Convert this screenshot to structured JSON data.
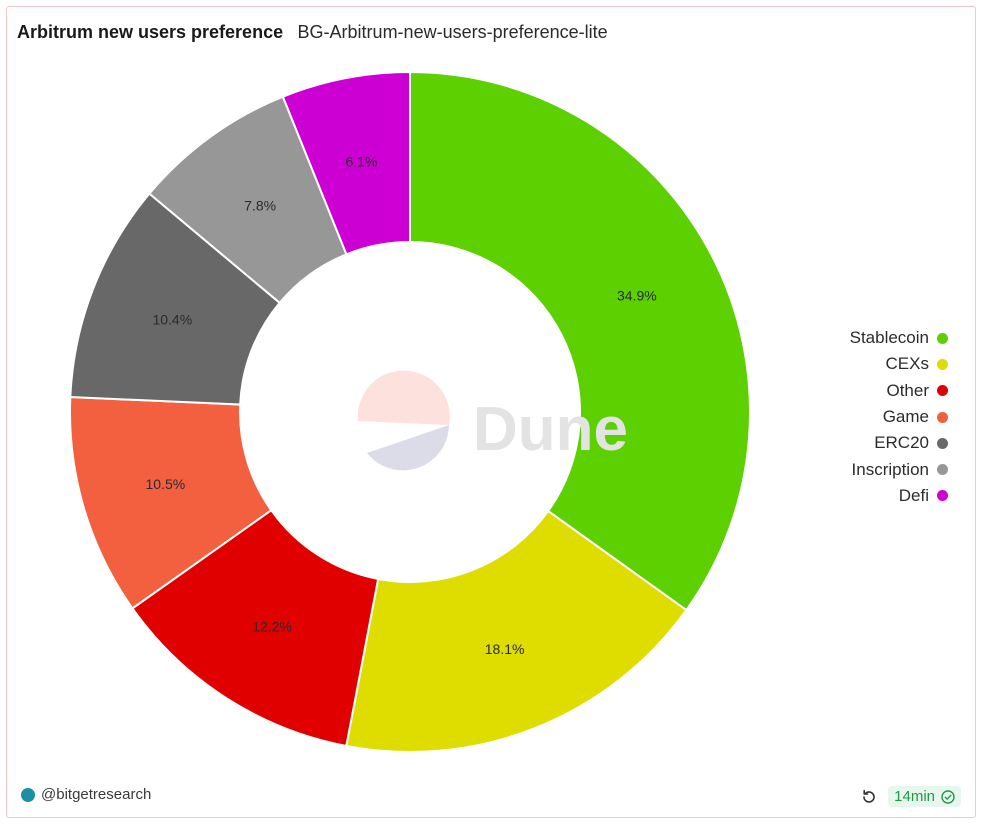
{
  "header": {
    "title": "Arbitrum new users preference",
    "subtitle": "BG-Arbitrum-new-users-preference-lite"
  },
  "watermark": {
    "text": "Dune"
  },
  "chart_data": {
    "type": "pie",
    "style": "donut",
    "title": "Arbitrum new users preference",
    "legend_position": "right",
    "slices": [
      {
        "label": "Stablecoin",
        "value": 34.9,
        "display": "34.9%",
        "color": "#5cd000"
      },
      {
        "label": "CEXs",
        "value": 18.1,
        "display": "18.1%",
        "color": "#dfdc00"
      },
      {
        "label": "Other",
        "value": 12.2,
        "display": "12.2%",
        "color": "#e00000"
      },
      {
        "label": "Game",
        "value": 10.5,
        "display": "10.5%",
        "color": "#f2603f"
      },
      {
        "label": "ERC20",
        "value": 10.4,
        "display": "10.4%",
        "color": "#686868"
      },
      {
        "label": "Inscription",
        "value": 7.8,
        "display": "7.8%",
        "color": "#979797"
      },
      {
        "label": "Defi",
        "value": 6.1,
        "display": "6.1%",
        "color": "#cc00d3"
      }
    ]
  },
  "footer": {
    "author": "@bitgetresearch",
    "refresh_icon": "refresh-icon",
    "status": "14min",
    "status_icon": "check-circle-icon"
  }
}
